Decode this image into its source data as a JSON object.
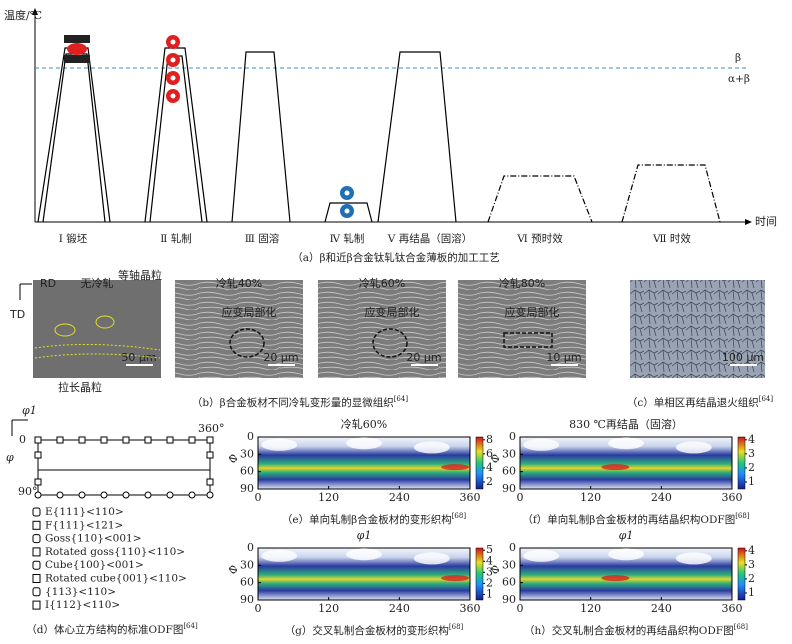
{
  "process": {
    "y_label": "温度/℃",
    "x_label": "时间",
    "beta": "β",
    "alpha_beta": "α+β",
    "steps": [
      "Ⅰ 锻坯",
      "Ⅱ 轧制",
      "Ⅲ 固溶",
      "Ⅳ 轧制",
      "Ⅴ 再结晶（固溶）",
      "Ⅵ 预时效",
      "Ⅶ 时效"
    ],
    "caption": "（a）β和近β合金钛轧钛合金薄板的加工工艺"
  },
  "micrographs": {
    "rd": "RD",
    "td": "TD",
    "equiaxed": "等轴晶粒",
    "elongated": "拉长晶粒",
    "panels": [
      {
        "title": "无冷轧",
        "scale": "50 μm"
      },
      {
        "title": "冷轧40%",
        "annotation": "应变局部化",
        "scale": "20 μm"
      },
      {
        "title": "冷轧60%",
        "annotation": "应变局部化",
        "scale": "20 μm"
      },
      {
        "title": "冷轧80%",
        "annotation": "应变局部化",
        "scale": "10 μm"
      },
      {
        "scale": "100 μm"
      }
    ],
    "caption_b": "（b）β合金板材不同冷轧变形量的显微组织",
    "caption_b_ref": "[64]",
    "caption_c": "（c）单相区再结晶退火组织",
    "caption_c_ref": "[64]"
  },
  "odf_standard": {
    "phi1": "φ1",
    "phi": "φ",
    "zero": "0",
    "max_phi1": "360°",
    "max_phi": "90°",
    "legend": [
      "E{111}<110>",
      "F{111}<121>",
      "Goss{110}<001>",
      "Rotated goss{110}<110>",
      "Cube{100}<001>",
      "Rotated cube{001}<110>",
      "{113}<110>",
      "I{112}<110>"
    ],
    "caption": "（d）体心立方结构的标准ODF图",
    "ref": "[64]"
  },
  "odf_maps": [
    {
      "title": "冷轧60%",
      "y_label": "Φ",
      "yticks": [
        0,
        30,
        60,
        90
      ],
      "xticks": [
        0,
        120,
        240,
        360
      ],
      "colorbar": [
        2,
        4,
        6,
        8
      ],
      "caption": "（e）单向轧制β合金板材的变形织构",
      "ref": "[68]"
    },
    {
      "title": "830 ℃再结晶（固溶）",
      "y_label": "Φ",
      "yticks": [
        0,
        30,
        60,
        90
      ],
      "xticks": [
        0,
        120,
        240,
        360
      ],
      "colorbar": [
        1,
        2,
        3,
        4
      ],
      "caption": "（f）单向轧制β合金板材的再结晶织构ODF图",
      "ref": "[68]"
    },
    {
      "title": "φ1",
      "y_label": "Φ",
      "yticks": [
        0,
        30,
        60,
        90
      ],
      "xticks": [
        0,
        120,
        240,
        360
      ],
      "colorbar": [
        1,
        2,
        3,
        4,
        5
      ],
      "caption": "（g）交叉轧制合金板材的变形织构",
      "ref": "[68]"
    },
    {
      "title": "φ1",
      "y_label": "Φ",
      "yticks": [
        0,
        30,
        60,
        90
      ],
      "xticks": [
        0,
        120,
        240,
        360
      ],
      "colorbar": [
        1,
        2,
        3,
        4
      ],
      "caption": "（h）交叉轧制合金板材的再结晶织构ODF图",
      "ref": "[68]"
    }
  ]
}
